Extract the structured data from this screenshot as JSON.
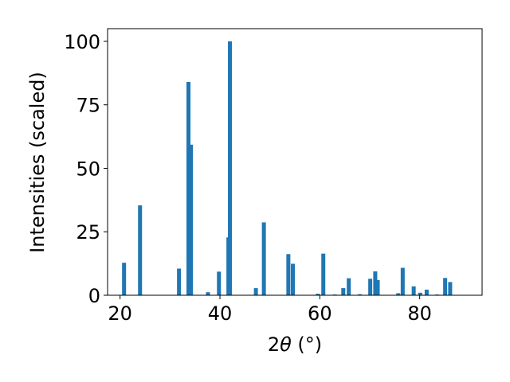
{
  "chart_data": {
    "type": "bar",
    "xlabel_prefix": "2",
    "xlabel_symbol": "θ",
    "xlabel_unit": " (°)",
    "ylabel": "Intensities (scaled)",
    "xlim": [
      17.5,
      92.5
    ],
    "ylim": [
      0,
      105
    ],
    "x_ticks": [
      20,
      40,
      60,
      80
    ],
    "y_ticks": [
      0,
      25,
      50,
      75,
      100
    ],
    "bar_width": 0.8,
    "color": "#1f77b4",
    "grid": false,
    "bars": [
      {
        "x": 20.8,
        "y": 12.8
      },
      {
        "x": 24.0,
        "y": 35.4
      },
      {
        "x": 31.8,
        "y": 10.5
      },
      {
        "x": 33.7,
        "y": 84.0
      },
      {
        "x": 34.2,
        "y": 59.3
      },
      {
        "x": 37.6,
        "y": 1.2
      },
      {
        "x": 39.8,
        "y": 9.3
      },
      {
        "x": 41.7,
        "y": 22.8
      },
      {
        "x": 42.0,
        "y": 100.0
      },
      {
        "x": 47.2,
        "y": 2.8
      },
      {
        "x": 48.8,
        "y": 28.7
      },
      {
        "x": 53.7,
        "y": 16.2
      },
      {
        "x": 54.6,
        "y": 12.4
      },
      {
        "x": 59.6,
        "y": 0.6
      },
      {
        "x": 60.7,
        "y": 16.4
      },
      {
        "x": 63.0,
        "y": 0.3
      },
      {
        "x": 64.7,
        "y": 2.8
      },
      {
        "x": 65.8,
        "y": 6.7
      },
      {
        "x": 68.0,
        "y": 0.4
      },
      {
        "x": 70.1,
        "y": 6.5
      },
      {
        "x": 71.1,
        "y": 9.4
      },
      {
        "x": 71.6,
        "y": 6.0
      },
      {
        "x": 75.7,
        "y": 0.8
      },
      {
        "x": 76.6,
        "y": 10.8
      },
      {
        "x": 78.8,
        "y": 3.5
      },
      {
        "x": 80.1,
        "y": 1.0
      },
      {
        "x": 81.4,
        "y": 2.2
      },
      {
        "x": 83.5,
        "y": 0.3
      },
      {
        "x": 85.1,
        "y": 6.8
      },
      {
        "x": 86.1,
        "y": 5.2
      }
    ]
  }
}
